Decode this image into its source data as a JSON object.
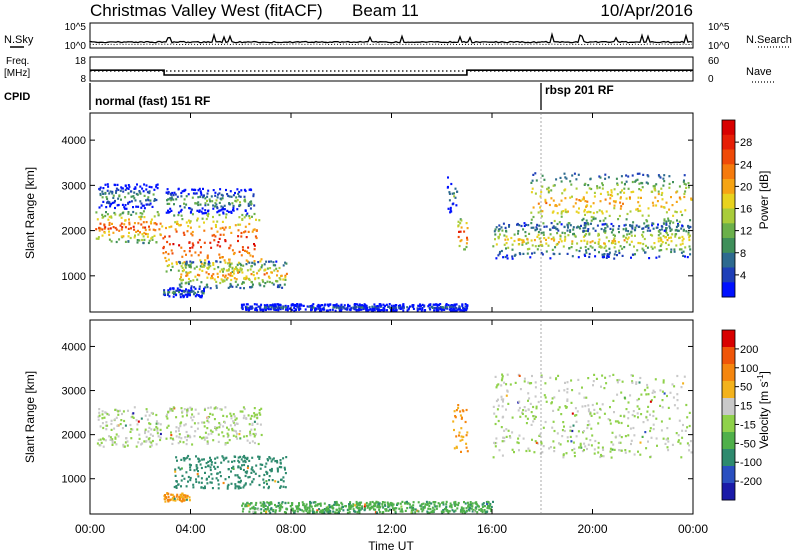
{
  "header": {
    "title": "Christmas Valley West (fitACF)",
    "beam": "Beam 11",
    "date": "10/Apr/2016"
  },
  "aux": {
    "nsky_label": "N.Sky",
    "nsky_ticks": [
      "10^5",
      "10^0"
    ],
    "nsearch_label": "N.Search",
    "nsearch_ticks": [
      "10^5",
      "10^0"
    ],
    "freq_label": "Freq.",
    "freq_unit": "[MHz]",
    "freq_ticks": [
      "18",
      "8"
    ],
    "nave_label": "Nave",
    "nave_ticks": [
      "60",
      "0"
    ],
    "cpid_label": "CPID",
    "cpid_segments": [
      {
        "label": "normal (fast) 151 RF",
        "start_hour": 0,
        "end_hour": 18.1
      },
      {
        "label": "rbsp 201 RF",
        "start_hour": 18.1,
        "end_hour": 24
      }
    ],
    "freq_series": [
      {
        "hour": 0,
        "mhz": 12.5
      },
      {
        "hour": 2.95,
        "mhz": 12.5
      },
      {
        "hour": 2.95,
        "mhz": 10.5
      },
      {
        "hour": 15.0,
        "mhz": 10.5
      },
      {
        "hour": 15.0,
        "mhz": 12.5
      },
      {
        "hour": 24,
        "mhz": 12.5
      }
    ]
  },
  "chart_data": [
    {
      "type": "heatmap",
      "panel": "power",
      "ylabel": "Slant Range [km]",
      "ylim": [
        200,
        4600
      ],
      "yticks": [
        "1000",
        "2000",
        "3000",
        "4000"
      ],
      "xlim_hours": [
        0,
        24
      ],
      "colorbar": {
        "label": "Power [dB]",
        "ticks": [
          "4",
          "8",
          "12",
          "16",
          "20",
          "24",
          "28"
        ],
        "colors": [
          "#0010ff",
          "#1e3fb8",
          "#2d6a8f",
          "#3f8f5a",
          "#6bb04a",
          "#a9cc3a",
          "#e8d21e",
          "#f6a414",
          "#f57a0c",
          "#ef4a08",
          "#e61e06",
          "#d80000"
        ]
      },
      "regions": [
        {
          "start_hour": 0.2,
          "end_hour": 2.8,
          "low_km": 1750,
          "high_km": 2450,
          "level": 0.85
        },
        {
          "start_hour": 0.3,
          "end_hour": 2.7,
          "low_km": 2500,
          "high_km": 3050,
          "level": 0.35
        },
        {
          "start_hour": 2.8,
          "end_hour": 6.8,
          "low_km": 1100,
          "high_km": 2400,
          "level": 0.95
        },
        {
          "start_hour": 3.0,
          "end_hour": 6.5,
          "low_km": 2400,
          "high_km": 2950,
          "level": 0.4
        },
        {
          "start_hour": 3.5,
          "end_hour": 7.8,
          "low_km": 750,
          "high_km": 1350,
          "level": 0.7
        },
        {
          "start_hour": 2.9,
          "end_hour": 4.5,
          "low_km": 550,
          "high_km": 750,
          "level": 0.3
        },
        {
          "start_hour": 14.6,
          "end_hour": 15.0,
          "low_km": 1600,
          "high_km": 2300,
          "level": 0.9
        },
        {
          "start_hour": 14.2,
          "end_hour": 14.6,
          "low_km": 2400,
          "high_km": 3200,
          "level": 0.35
        },
        {
          "start_hour": 16.0,
          "end_hour": 23.9,
          "low_km": 1400,
          "high_km": 2200,
          "level": 0.6
        },
        {
          "start_hour": 17.5,
          "end_hour": 23.9,
          "low_km": 2000,
          "high_km": 3300,
          "level": 0.7
        },
        {
          "start_hour": 6.0,
          "end_hour": 15.0,
          "low_km": 250,
          "high_km": 400,
          "level": 0.2
        }
      ]
    },
    {
      "type": "heatmap",
      "panel": "velocity",
      "ylabel": "Slant Range [km]",
      "ylim": [
        200,
        4600
      ],
      "yticks": [
        "1000",
        "2000",
        "3000",
        "4000"
      ],
      "xlabel": "Time UT",
      "xticks": [
        "00:00",
        "04:00",
        "08:00",
        "12:00",
        "16:00",
        "20:00",
        "00:00"
      ],
      "xlim_hours": [
        0,
        24
      ],
      "colorbar": {
        "label": "Velocity [m s",
        "label_exponent": "-1",
        "label_close": "]",
        "ticks": [
          "200",
          "100",
          "50",
          "15",
          "-15",
          "-50",
          "-100",
          "-200"
        ],
        "colors": [
          "#1a1aa8",
          "#2a4fc0",
          "#2e8a6e",
          "#4fb04a",
          "#8fd14a",
          "#c9c9c9",
          "#f3b21c",
          "#f5860f",
          "#ef5509",
          "#d80000"
        ]
      },
      "regions": [
        {
          "start_hour": 0.2,
          "end_hour": 2.8,
          "low_km": 1750,
          "high_km": 2650,
          "level": 0.0
        },
        {
          "start_hour": 3.0,
          "end_hour": 6.8,
          "low_km": 1800,
          "high_km": 2650,
          "level": 0.0
        },
        {
          "start_hour": 3.3,
          "end_hour": 7.8,
          "low_km": 800,
          "high_km": 1550,
          "level": -0.55
        },
        {
          "start_hour": 2.9,
          "end_hour": 4.0,
          "low_km": 500,
          "high_km": 700,
          "level": 0.45
        },
        {
          "start_hour": 14.4,
          "end_hour": 15.0,
          "low_km": 1600,
          "high_km": 2700,
          "level": 0.45
        },
        {
          "start_hour": 16.0,
          "end_hour": 23.9,
          "low_km": 1500,
          "high_km": 3400,
          "level": 0.0
        },
        {
          "start_hour": 6.0,
          "end_hour": 16.0,
          "low_km": 250,
          "high_km": 500,
          "level": -0.4
        }
      ]
    }
  ]
}
